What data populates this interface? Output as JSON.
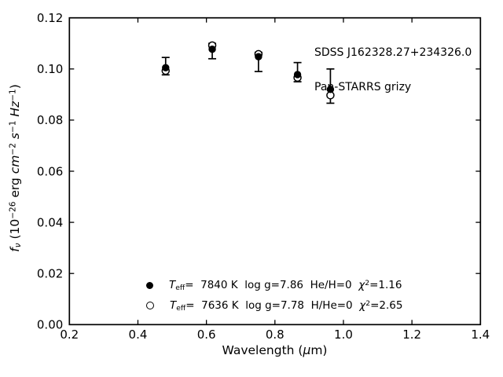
{
  "figure": {
    "background": "#ffffff",
    "foreground": "#000000"
  },
  "annotation": {
    "line1": "SDSS J162328.27+234326.0",
    "line2": "Pan-STARRS grizy"
  },
  "axis_labels": {
    "x": "Wavelength (*μ*m)",
    "y": "*f*~{*ν*} (10^{−26} erg *cm*^{−2} *s*^{−1} *Hz*^{−1})"
  },
  "legend": {
    "entries": [
      {
        "marker": "filled-circle",
        "label": "*T*~{eff}=  7840 K  log g=7.86  He/H=0  *χ*^{2}=1.16"
      },
      {
        "marker": "open-circle",
        "label": "*T*~{eff}=  7636 K  log g=7.78  H/He=0  *χ*^{2}=2.65"
      }
    ]
  },
  "chart_data": {
    "type": "scatter",
    "title": "",
    "xlabel": "Wavelength (μm)",
    "ylabel": "f_ν (10⁻²⁶ erg cm⁻² s⁻¹ Hz⁻¹)",
    "xlim": [
      0.2,
      1.4
    ],
    "ylim": [
      0.0,
      0.12
    ],
    "grid": false,
    "tick_direction": "in",
    "ticks_on_all_sides": true,
    "x_ticks": [
      0.2,
      0.4,
      0.6,
      0.8,
      1.0,
      1.2,
      1.4
    ],
    "x_tick_labels": [
      "0.2",
      "0.4",
      "0.6",
      "0.8",
      "1.0",
      "1.2",
      "1.4"
    ],
    "y_ticks": [
      0.0,
      0.02,
      0.04,
      0.06,
      0.08,
      0.1,
      0.12
    ],
    "y_tick_labels": [
      "0.00",
      "0.02",
      "0.04",
      "0.06",
      "0.08",
      "0.10",
      "0.12"
    ],
    "x": [
      0.481,
      0.617,
      0.752,
      0.866,
      0.962
    ],
    "series": [
      {
        "name": "Teff= 7840 K  log g=7.86  He/H=0  chi2=1.16",
        "marker": "filled-circle",
        "values": [
          0.1005,
          0.1077,
          0.1048,
          0.0978,
          0.092
        ]
      },
      {
        "name": "Teff= 7636 K  log g=7.78  H/He=0  chi2=2.65",
        "marker": "open-circle",
        "values": [
          0.0993,
          0.1092,
          0.1058,
          0.0966,
          0.0897
        ]
      }
    ],
    "error_bars": {
      "lo": [
        0.0977,
        0.104,
        0.099,
        0.095,
        0.0866
      ],
      "hi": [
        0.1045,
        0.11,
        0.1065,
        0.1025,
        0.1
      ]
    },
    "legend_position": "lower left inside axes",
    "annotation_position": "upper right inside axes"
  }
}
